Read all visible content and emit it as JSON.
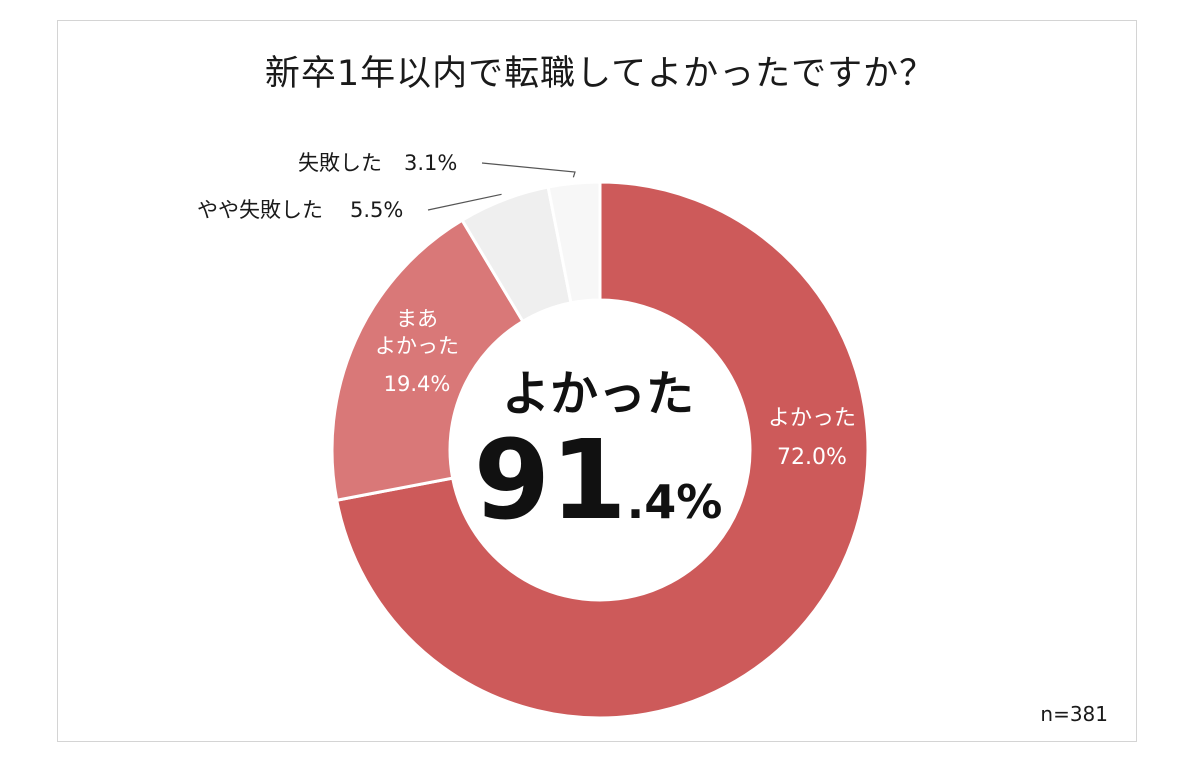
{
  "colors": {
    "yokatta": "#cd5a5a",
    "maa_yokatta": "#d97878",
    "yaya_shippai": "#efefef",
    "shippai": "#f7f7f7",
    "frame_border": "#d4d4d4"
  },
  "chart_data": {
    "type": "pie",
    "title": "新卒1年以内で転職してよかったですか？",
    "sample_size": "n=381",
    "center_label": {
      "caption": "よかった",
      "value_big": "91",
      "value_small": ".4%"
    },
    "slices": [
      {
        "name": "よかった",
        "value": 72.0,
        "label_value": "72.0%"
      },
      {
        "name_lines": [
          "まあ",
          "よかった"
        ],
        "value": 19.4,
        "label_value": "19.4%"
      },
      {
        "name": "やや失敗した",
        "value": 5.5,
        "label_value": "5.5%"
      },
      {
        "name": "失敗した",
        "value": 3.1,
        "label_value": "3.1%"
      }
    ]
  }
}
